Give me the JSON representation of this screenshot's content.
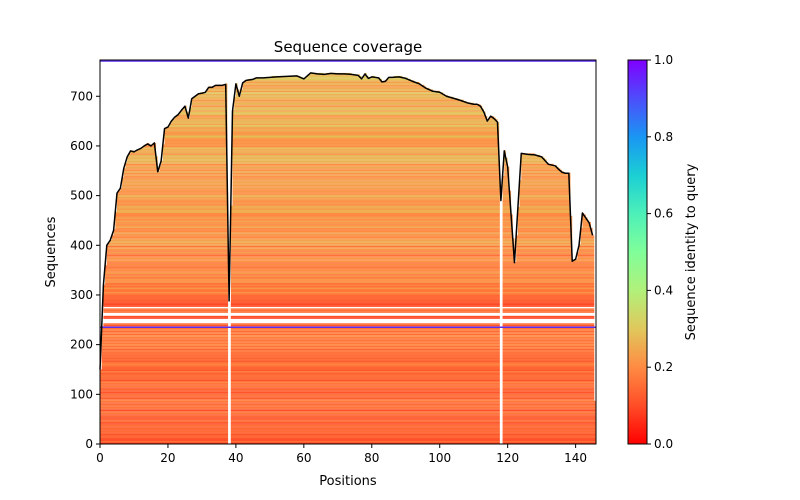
{
  "chart_data": {
    "type": "heatmap",
    "title": "Sequence coverage",
    "xlabel": "Positions",
    "ylabel": "Sequences",
    "xlim": [
      0,
      146
    ],
    "ylim": [
      0,
      773
    ],
    "xticks": [
      0,
      20,
      40,
      60,
      80,
      100,
      120,
      140
    ],
    "yticks": [
      0,
      100,
      200,
      300,
      400,
      500,
      600,
      700
    ],
    "colorbar": {
      "label": "Sequence identity to query",
      "range": [
        0.0,
        1.0
      ],
      "ticks": [
        "0.0",
        "0.2",
        "0.4",
        "0.6",
        "0.8",
        "1.0"
      ],
      "colormap": "rainbow_r"
    },
    "horizontal_lines": [
      {
        "y": 235,
        "color": "#5a2df0"
      },
      {
        "y": 771,
        "color": "#5a2df0"
      }
    ],
    "gap_columns": [
      38,
      118
    ],
    "coverage_line": {
      "color": "#000000",
      "x": [
        0,
        1,
        2,
        3,
        4,
        5,
        6,
        7,
        8,
        9,
        10,
        11,
        12,
        13,
        14,
        15,
        16,
        17,
        18,
        19,
        20,
        21,
        22,
        23,
        24,
        25,
        26,
        27,
        28,
        29,
        30,
        31,
        32,
        33,
        34,
        35,
        36,
        37,
        38,
        39,
        40,
        41,
        42,
        43,
        44,
        45,
        46,
        48,
        50,
        52,
        55,
        58,
        60,
        62,
        64,
        66,
        68,
        70,
        72,
        74,
        75,
        76,
        77,
        78,
        79,
        80,
        81,
        82,
        83,
        84,
        85,
        86,
        88,
        90,
        92,
        94,
        96,
        98,
        100,
        102,
        104,
        106,
        108,
        110,
        111,
        112,
        113,
        114,
        115,
        116,
        117,
        118,
        119,
        120,
        122,
        124,
        126,
        128,
        130,
        132,
        134,
        135,
        136,
        137,
        138,
        139,
        140,
        141,
        142,
        143,
        144,
        145
      ],
      "y": [
        150,
        320,
        400,
        410,
        430,
        505,
        515,
        555,
        578,
        590,
        588,
        592,
        595,
        600,
        604,
        600,
        606,
        548,
        570,
        635,
        638,
        650,
        658,
        663,
        672,
        680,
        656,
        695,
        700,
        705,
        706,
        708,
        718,
        718,
        722,
        722,
        722,
        724,
        288,
        670,
        725,
        700,
        727,
        732,
        733,
        734,
        737,
        737,
        738,
        739,
        740,
        741,
        735,
        747,
        745,
        744,
        746,
        745,
        745,
        744,
        743,
        742,
        735,
        745,
        736,
        739,
        738,
        737,
        729,
        730,
        738,
        738,
        739,
        736,
        730,
        725,
        716,
        710,
        708,
        700,
        696,
        692,
        687,
        684,
        684,
        680,
        668,
        650,
        660,
        655,
        648,
        490,
        590,
        558,
        365,
        585,
        583,
        582,
        578,
        563,
        560,
        553,
        547,
        545,
        545,
        368,
        372,
        400,
        465,
        455,
        445,
        420,
        395,
        220,
        85
      ]
    }
  }
}
